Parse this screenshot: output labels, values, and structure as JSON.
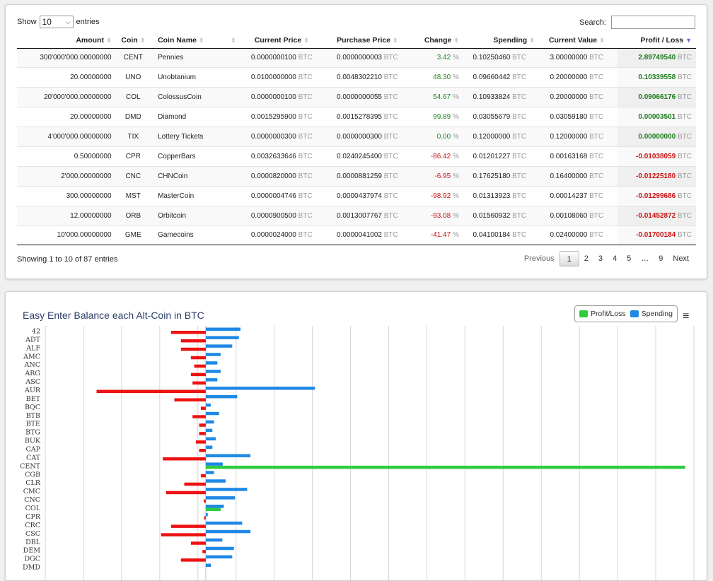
{
  "table": {
    "length_label_pre": "Show",
    "length_value": "10",
    "length_label_post": "entries",
    "search_label": "Search:",
    "search_value": "",
    "columns": [
      "Amount",
      "Coin",
      "Coin Name",
      "",
      "Current Price",
      "Purchase Price",
      "Change",
      "Spending",
      "Current Value",
      "Profit / Loss"
    ],
    "rows": [
      {
        "amount": "300'000'000.00000000",
        "coin": "CENT",
        "name": "Pennies",
        "current_price": "0.0000000100",
        "purchase_price": "0.0000000003",
        "change": "3.42",
        "spending": "0.10250460",
        "current_value": "3.00000000",
        "profit_loss": "2.89749540",
        "sign": "pos"
      },
      {
        "amount": "20.00000000",
        "coin": "UNO",
        "name": "Unobtanium",
        "current_price": "0.0100000000",
        "purchase_price": "0.0048302210",
        "change": "48.30",
        "spending": "0.09660442",
        "current_value": "0.20000000",
        "profit_loss": "0.10339558",
        "sign": "pos"
      },
      {
        "amount": "20'000'000.00000000",
        "coin": "COL",
        "name": "ColossusCoin",
        "current_price": "0.0000000100",
        "purchase_price": "0.0000000055",
        "change": "54.67",
        "spending": "0.10933824",
        "current_value": "0.20000000",
        "profit_loss": "0.09066176",
        "sign": "pos"
      },
      {
        "amount": "20.00000000",
        "coin": "DMD",
        "name": "Diamond",
        "current_price": "0.0015295900",
        "purchase_price": "0.0015278395",
        "change": "99.89",
        "spending": "0.03055679",
        "current_value": "0.03059180",
        "profit_loss": "0.00003501",
        "sign": "pos"
      },
      {
        "amount": "4'000'000.00000000",
        "coin": "TIX",
        "name": "Lottery Tickets",
        "current_price": "0.0000000300",
        "purchase_price": "0.0000000300",
        "change": "0.00",
        "spending": "0.12000000",
        "current_value": "0.12000000",
        "profit_loss": "0.00000000",
        "sign": "pos"
      },
      {
        "amount": "0.50000000",
        "coin": "CPR",
        "name": "CopperBars",
        "current_price": "0.0032633646",
        "purchase_price": "0.0240245400",
        "change": "-86.42",
        "spending": "0.01201227",
        "current_value": "0.00163168",
        "profit_loss": "-0.01038059",
        "sign": "neg"
      },
      {
        "amount": "2'000.00000000",
        "coin": "CNC",
        "name": "CHNCoin",
        "current_price": "0.0000820000",
        "purchase_price": "0.0000881259",
        "change": "-6.95",
        "spending": "0.17625180",
        "current_value": "0.16400000",
        "profit_loss": "-0.01225180",
        "sign": "neg"
      },
      {
        "amount": "300.00000000",
        "coin": "MST",
        "name": "MasterCoin",
        "current_price": "0.0000004746",
        "purchase_price": "0.0000437974",
        "change": "-98.92",
        "spending": "0.01313923",
        "current_value": "0.00014237",
        "profit_loss": "-0.01299686",
        "sign": "neg"
      },
      {
        "amount": "12.00000000",
        "coin": "ORB",
        "name": "Orbitcoin",
        "current_price": "0.0000900500",
        "purchase_price": "0.0013007767",
        "change": "-93.08",
        "spending": "0.01560932",
        "current_value": "0.00108060",
        "profit_loss": "-0.01452872",
        "sign": "neg"
      },
      {
        "amount": "10'000.00000000",
        "coin": "GME",
        "name": "Gamecoins",
        "current_price": "0.0000024000",
        "purchase_price": "0.0000041002",
        "change": "-41.47",
        "spending": "0.04100184",
        "current_value": "0.02400000",
        "profit_loss": "-0.01700184",
        "sign": "neg"
      }
    ],
    "unit": "BTC",
    "pct": "%",
    "info": "Showing 1 to 10 of 87 entries",
    "pager": [
      "Previous",
      "1",
      "2",
      "3",
      "4",
      "5",
      "…",
      "9",
      "Next"
    ]
  },
  "chart_data": {
    "type": "bar",
    "orientation": "horizontal",
    "title": "Easy Enter Balance each Alt-Coin in BTC",
    "legend": [
      "Profit/Loss",
      "Spending"
    ],
    "legend_position": "top-right",
    "colors": {
      "profit_loss_pos": "#2ecc40",
      "profit_loss_neg": "#ee1111",
      "spending": "#1e88e5",
      "grid": "#d6d6d6",
      "title": "#2c3e66"
    },
    "categories": [
      "42",
      "ADT",
      "ALF",
      "AMC",
      "ANC",
      "ARG",
      "ASC",
      "AUR",
      "BET",
      "BQC",
      "BTB",
      "BTE",
      "BTG",
      "BUK",
      "CAP",
      "CAT",
      "CENT",
      "CGB",
      "CLR",
      "CMC",
      "CNC",
      "COL",
      "CPR",
      "CRC",
      "CSC",
      "DBL",
      "DEM",
      "DGC",
      "DMD"
    ],
    "series": [
      {
        "name": "Profit/Loss",
        "values": [
          -0.21,
          -0.15,
          -0.15,
          -0.09,
          -0.07,
          -0.09,
          -0.08,
          -0.66,
          -0.19,
          -0.03,
          -0.08,
          -0.04,
          -0.04,
          -0.06,
          -0.04,
          -0.26,
          2.8975,
          -0.03,
          -0.13,
          -0.24,
          -0.0123,
          0.0907,
          -0.0104,
          -0.21,
          -0.27,
          -0.09,
          -0.02,
          -0.15,
          4e-05
        ]
      },
      {
        "name": "Spending",
        "values": [
          0.21,
          0.2,
          0.16,
          0.09,
          0.07,
          0.09,
          0.07,
          0.66,
          0.19,
          0.03,
          0.08,
          0.05,
          0.04,
          0.06,
          0.04,
          0.27,
          0.1025,
          0.05,
          0.12,
          0.25,
          0.1763,
          0.1093,
          0.012,
          0.22,
          0.27,
          0.1,
          0.17,
          0.16,
          0.0306
        ]
      }
    ],
    "xlim": [
      -0.97,
      2.95
    ],
    "grid": true
  }
}
